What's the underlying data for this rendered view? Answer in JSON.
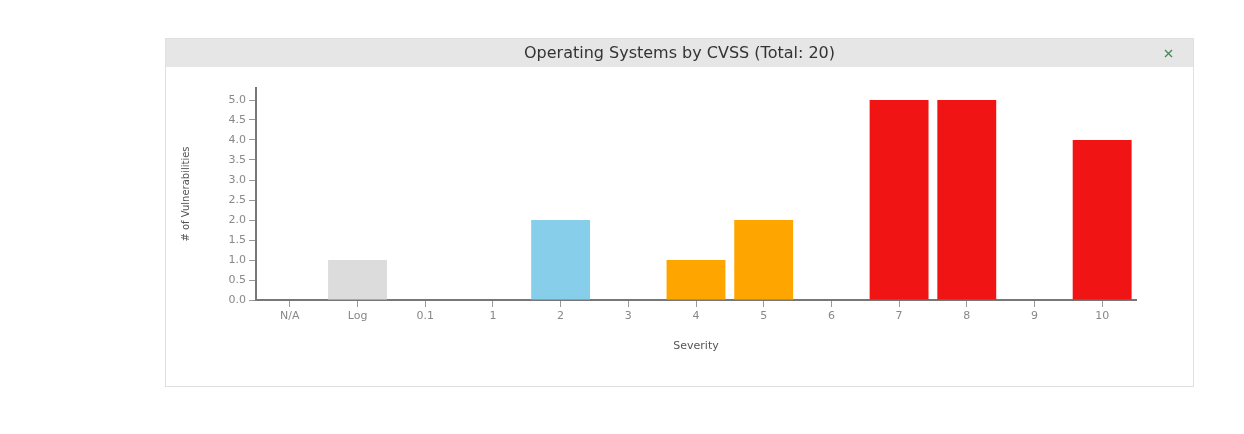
{
  "chart_data": {
    "type": "bar",
    "title": "Operating Systems by CVSS (Total: 20)",
    "xlabel": "Severity",
    "ylabel": "# of Vulnerabilities",
    "categories": [
      "N/A",
      "Log",
      "0.1",
      "1",
      "2",
      "3",
      "4",
      "5",
      "6",
      "7",
      "8",
      "9",
      "10"
    ],
    "values": [
      0,
      1,
      0,
      0,
      2,
      0,
      1,
      2,
      0,
      5,
      5,
      0,
      4
    ],
    "colors": [
      null,
      "#dcdcdc",
      null,
      null,
      "#87ceeb",
      null,
      "#ffa500",
      "#ffa500",
      null,
      "#f01414",
      "#f01414",
      null,
      "#f01414"
    ],
    "ylim": [
      0,
      5.3
    ],
    "yticks": [
      {
        "value": 0,
        "label": "0.0"
      },
      {
        "value": 0.5,
        "label": "0.5"
      },
      {
        "value": 1,
        "label": "1.0"
      },
      {
        "value": 1.5,
        "label": "1.5"
      },
      {
        "value": 2,
        "label": "2.0"
      },
      {
        "value": 2.5,
        "label": "2.5"
      },
      {
        "value": 3,
        "label": "3.0"
      },
      {
        "value": 3.5,
        "label": "3.5"
      },
      {
        "value": 4,
        "label": "4.0"
      },
      {
        "value": 4.5,
        "label": "4.5"
      },
      {
        "value": 5,
        "label": "5.0"
      }
    ],
    "grid": false,
    "legend": false
  }
}
